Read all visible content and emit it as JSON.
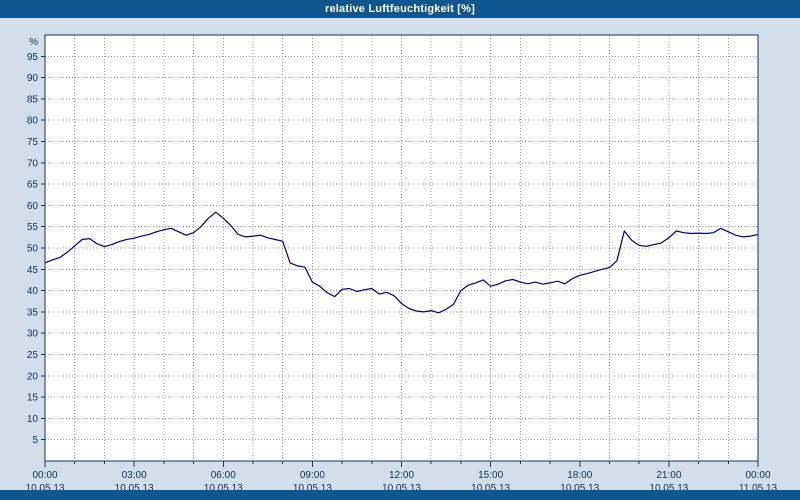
{
  "title": "relative Luftfeuchtigkeit [%]",
  "colors": {
    "titlebar": "#0F568F",
    "background": "#D2DEEA",
    "plot_background": "#FFFFFF",
    "plot_border": "#16365C",
    "grid": "#9C9CA8",
    "line": "#00008B",
    "text": "#10304F"
  },
  "chart_data": {
    "type": "line",
    "title": "relative Luftfeuchtigkeit [%]",
    "xlabel": "",
    "ylabel": "%",
    "ylim": [
      0,
      100
    ],
    "xlim": [
      0,
      24
    ],
    "grid": true,
    "yticks": [
      5,
      10,
      15,
      20,
      25,
      30,
      35,
      40,
      45,
      50,
      55,
      60,
      65,
      70,
      75,
      80,
      85,
      90,
      95
    ],
    "x_minor_step": 1,
    "x_major_ticks": [
      0,
      3,
      6,
      9,
      12,
      15,
      18,
      21,
      24
    ],
    "x_tick_times": [
      "00:00",
      "03:00",
      "06:00",
      "09:00",
      "12:00",
      "15:00",
      "18:00",
      "21:00",
      "00:00"
    ],
    "x_tick_dates": [
      "10.05.13",
      "10.05.13",
      "10.05.13",
      "10.05.13",
      "10.05.13",
      "10.05.13",
      "10.05.13",
      "10.05.13",
      "11.05.13"
    ],
    "series": [
      {
        "name": "relative Luftfeuchtigkeit",
        "color": "#00008B",
        "x": [
          0,
          0.25,
          0.5,
          0.75,
          1,
          1.25,
          1.5,
          1.75,
          2,
          2.25,
          2.5,
          2.75,
          3,
          3.25,
          3.5,
          3.75,
          4,
          4.25,
          4.5,
          4.75,
          5,
          5.25,
          5.5,
          5.75,
          6,
          6.25,
          6.5,
          6.75,
          7,
          7.25,
          7.5,
          7.75,
          8,
          8.25,
          8.5,
          8.75,
          9,
          9.25,
          9.5,
          9.75,
          10,
          10.25,
          10.5,
          10.75,
          11,
          11.25,
          11.5,
          11.75,
          12,
          12.25,
          12.5,
          12.75,
          13,
          13.25,
          13.5,
          13.75,
          14,
          14.25,
          14.5,
          14.75,
          15,
          15.25,
          15.5,
          15.75,
          16,
          16.25,
          16.5,
          16.75,
          17,
          17.25,
          17.5,
          17.75,
          18,
          18.25,
          18.5,
          18.75,
          19,
          19.25,
          19.5,
          19.75,
          20,
          20.25,
          20.5,
          20.75,
          21,
          21.25,
          21.5,
          21.75,
          22,
          22.25,
          22.5,
          22.75,
          23,
          23.25,
          23.5,
          23.75,
          24
        ],
        "y": [
          46.5,
          47.2,
          47.8,
          49.0,
          50.5,
          52.0,
          52.2,
          51.0,
          50.3,
          50.8,
          51.5,
          52.0,
          52.3,
          52.8,
          53.2,
          53.8,
          54.3,
          54.6,
          53.8,
          53.0,
          53.6,
          55.0,
          57.0,
          58.4,
          57.0,
          55.3,
          53.2,
          52.6,
          52.8,
          53.0,
          52.4,
          52.0,
          51.6,
          46.5,
          45.8,
          45.5,
          42.0,
          41.0,
          39.5,
          38.6,
          40.3,
          40.5,
          39.8,
          40.2,
          40.5,
          39.2,
          39.6,
          38.8,
          37.0,
          35.8,
          35.2,
          35.0,
          35.3,
          34.8,
          35.6,
          36.8,
          40.0,
          41.3,
          41.8,
          42.5,
          41.0,
          41.5,
          42.3,
          42.6,
          42.0,
          41.6,
          42.0,
          41.5,
          41.8,
          42.2,
          41.6,
          42.8,
          43.6,
          44.0,
          44.5,
          45.0,
          45.4,
          47.0,
          54.0,
          51.8,
          50.6,
          50.4,
          50.8,
          51.2,
          52.4,
          54.0,
          53.6,
          53.4,
          53.5,
          53.4,
          53.6,
          54.6,
          53.8,
          53.0,
          52.6,
          52.8,
          53.2
        ]
      }
    ]
  }
}
